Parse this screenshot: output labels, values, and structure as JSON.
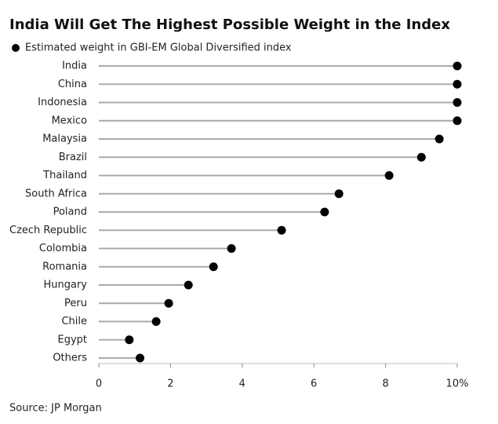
{
  "chart_data": {
    "type": "lollipop",
    "title": "India Will Get The Highest Possible Weight in the Index",
    "source": "Source: JP Morgan",
    "categories": [
      "India",
      "China",
      "Indonesia",
      "Mexico",
      "Malaysia",
      "Brazil",
      "Thailand",
      "South Africa",
      "Poland",
      "Czech Republic",
      "Colombia",
      "Romania",
      "Hungary",
      "Peru",
      "Chile",
      "Egypt",
      "Others"
    ],
    "series": [
      {
        "name": "Estimated weight in GBI-EM Global Diversified index",
        "color": "#000000",
        "values": [
          10,
          10,
          10,
          10,
          9.5,
          9,
          8.1,
          6.7,
          6.3,
          5.1,
          3.7,
          3.2,
          2.5,
          1.95,
          1.6,
          0.85,
          1.15
        ]
      }
    ],
    "xlim": [
      0,
      10
    ],
    "xticks": [
      0,
      2,
      4,
      6,
      8,
      {
        "value": 10,
        "label": "10%"
      }
    ]
  }
}
